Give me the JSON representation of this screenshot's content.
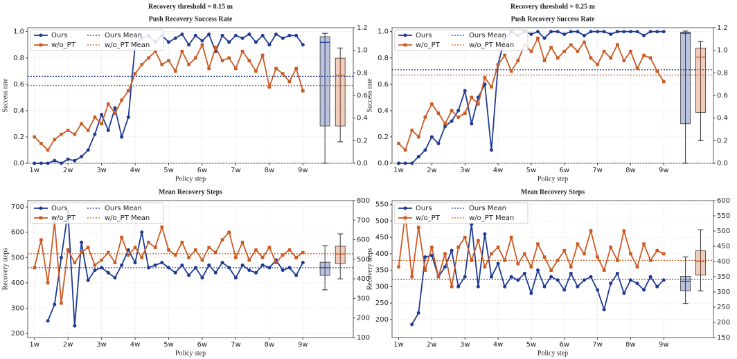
{
  "chart_data": [
    {
      "type": "line",
      "suptitle": "Recovery threshold = 0.15 m",
      "title": "Push Recovery Success Rate",
      "x_label": "Policy step",
      "y_label": "Success rate",
      "legend": "upper left",
      "grid": true,
      "x": [
        1,
        1.2,
        1.4,
        1.6,
        1.8,
        2,
        2.2,
        2.4,
        2.6,
        2.8,
        3,
        3.2,
        3.4,
        3.6,
        3.8,
        4,
        4.2,
        4.4,
        4.6,
        4.8,
        5,
        5.2,
        5.4,
        5.6,
        5.8,
        6,
        6.2,
        6.4,
        6.6,
        6.8,
        7,
        7.2,
        7.4,
        7.6,
        7.8,
        8,
        8.2,
        8.4,
        8.6,
        8.8,
        9
      ],
      "xlim": [
        0.8,
        10.5
      ],
      "xticks": [
        {
          "value": 1,
          "label": "1w"
        },
        {
          "value": 2,
          "label": "2w"
        },
        {
          "value": 3,
          "label": "3w"
        },
        {
          "value": 4,
          "label": "4w"
        },
        {
          "value": 5,
          "label": "5w"
        },
        {
          "value": 6,
          "label": "6w"
        },
        {
          "value": 7,
          "label": "7w"
        },
        {
          "value": 8,
          "label": "8w"
        },
        {
          "value": 9,
          "label": "9w"
        }
      ],
      "ylim": [
        0,
        1.03
      ],
      "yticks": [
        {
          "value": 0,
          "label": "0.0"
        },
        0.2,
        0.4,
        0.6,
        0.8,
        {
          "value": 1,
          "label": "1.0"
        }
      ],
      "y2lim": [
        0,
        1.2
      ],
      "y2ticks": [
        {
          "value": 0,
          "label": "0.0"
        },
        0.2,
        0.4,
        0.6,
        0.8,
        {
          "value": 1,
          "label": "1.0"
        },
        1.2
      ],
      "series": [
        {
          "name": "Ours",
          "color": "#1f3a93",
          "marker": "circle",
          "mean": 0.66,
          "mean_label": "Ours Mean",
          "values": [
            0,
            0,
            0,
            0.02,
            0,
            0.03,
            0.02,
            0.05,
            0.1,
            0.22,
            0.37,
            0.25,
            0.42,
            0.2,
            0.35,
            0.9,
            0.95,
            0.97,
            0.92,
            0.97,
            0.92,
            0.95,
            0.98,
            0.9,
            0.97,
            0.93,
            0.98,
            0.85,
            0.97,
            0.92,
            0.97,
            0.95,
            0.98,
            0.92,
            0.97,
            0.9,
            0.98,
            0.95,
            0.97,
            0.97,
            0.9
          ],
          "box": {
            "min": 0,
            "q1": 0.33,
            "median": 1.07,
            "q3": 1.12,
            "max": 1.15
          }
        },
        {
          "name": "w/o_PT",
          "color": "#cc5a22",
          "marker": "square",
          "mean": 0.59,
          "mean_label": "w/o_PT Mean",
          "values": [
            0.2,
            0.15,
            0.1,
            0.18,
            0.22,
            0.25,
            0.22,
            0.3,
            0.25,
            0.35,
            0.3,
            0.45,
            0.38,
            0.48,
            0.55,
            0.68,
            0.75,
            0.8,
            0.85,
            0.75,
            0.78,
            0.7,
            0.85,
            0.75,
            0.8,
            0.9,
            0.72,
            0.88,
            0.78,
            0.8,
            0.72,
            0.85,
            0.78,
            0.7,
            0.82,
            0.58,
            0.72,
            0.68,
            0.62,
            0.72,
            0.55
          ],
          "box": {
            "min": 0.19,
            "q1": 0.33,
            "median": 0.78,
            "q3": 0.93,
            "max": 1.02
          }
        }
      ]
    },
    {
      "type": "line",
      "suptitle": "Recovery threshold = 0.25 m",
      "title": "Push Recovery Success Rate",
      "x_label": "Policy step",
      "y_label": "Success rate",
      "legend": "upper left",
      "grid": true,
      "x": [
        1,
        1.2,
        1.4,
        1.6,
        1.8,
        2,
        2.2,
        2.4,
        2.6,
        2.8,
        3,
        3.2,
        3.4,
        3.6,
        3.8,
        4,
        4.2,
        4.4,
        4.6,
        4.8,
        5,
        5.2,
        5.4,
        5.6,
        5.8,
        6,
        6.2,
        6.4,
        6.6,
        6.8,
        7,
        7.2,
        7.4,
        7.6,
        7.8,
        8,
        8.2,
        8.4,
        8.6,
        8.8,
        9
      ],
      "xlim": [
        0.8,
        10.5
      ],
      "xticks": [
        {
          "value": 1,
          "label": "1w"
        },
        {
          "value": 2,
          "label": "2w"
        },
        {
          "value": 3,
          "label": "3w"
        },
        {
          "value": 4,
          "label": "4w"
        },
        {
          "value": 5,
          "label": "5w"
        },
        {
          "value": 6,
          "label": "6w"
        },
        {
          "value": 7,
          "label": "7w"
        },
        {
          "value": 8,
          "label": "8w"
        },
        {
          "value": 9,
          "label": "9w"
        }
      ],
      "ylim": [
        0,
        1.03
      ],
      "yticks": [
        {
          "value": 0,
          "label": "0.0"
        },
        0.2,
        0.4,
        0.6,
        0.8,
        {
          "value": 1,
          "label": "1.0"
        }
      ],
      "y2lim": [
        0,
        1.2
      ],
      "y2ticks": [
        {
          "value": 0,
          "label": "0.0"
        },
        0.2,
        0.4,
        0.6,
        0.8,
        {
          "value": 1,
          "label": "1.0"
        },
        1.2
      ],
      "series": [
        {
          "name": "Ours",
          "color": "#1f3a93",
          "marker": "circle",
          "mean": 0.71,
          "mean_label": "Ours Mean",
          "values": [
            0,
            0,
            0,
            0.05,
            0.1,
            0.2,
            0.15,
            0.28,
            0.32,
            0.4,
            0.55,
            0.3,
            0.5,
            0.6,
            0.1,
            0.75,
            0.95,
            1.0,
            0.97,
            1.0,
            0.98,
            1.0,
            0.95,
            1.0,
            1.0,
            0.98,
            1.0,
            1.0,
            0.97,
            1.0,
            1.0,
            1.0,
            0.98,
            1.0,
            1.0,
            1.0,
            1.0,
            0.97,
            1.0,
            1.0,
            1.0
          ],
          "box": {
            "min": 0,
            "q1": 0.35,
            "median": 1.15,
            "q3": 1.16,
            "max": 1.17
          }
        },
        {
          "name": "w/o_PT",
          "color": "#cc5a22",
          "marker": "square",
          "mean": 0.67,
          "mean_label": "w/o_PT Mean",
          "values": [
            0.15,
            0.1,
            0.25,
            0.2,
            0.35,
            0.45,
            0.38,
            0.3,
            0.4,
            0.35,
            0.38,
            0.5,
            0.45,
            0.65,
            0.58,
            0.75,
            0.82,
            0.7,
            0.78,
            0.9,
            0.85,
            0.95,
            0.78,
            0.88,
            0.8,
            0.85,
            0.9,
            0.85,
            0.92,
            0.8,
            0.75,
            0.85,
            0.8,
            0.9,
            0.78,
            0.85,
            0.72,
            0.82,
            0.8,
            0.7,
            0.62
          ],
          "box": {
            "min": 0.2,
            "q1": 0.45,
            "median": 0.94,
            "q3": 1.02,
            "max": 1.08
          }
        }
      ]
    },
    {
      "type": "line",
      "title": "Mean Recovery Steps",
      "x_label": "Policy step",
      "y_label": "Recovery steps",
      "legend": "upper left",
      "grid": true,
      "x": [
        1,
        1.2,
        1.4,
        1.6,
        1.8,
        2,
        2.2,
        2.4,
        2.6,
        2.8,
        3,
        3.2,
        3.4,
        3.6,
        3.8,
        4,
        4.2,
        4.4,
        4.6,
        4.8,
        5,
        5.2,
        5.4,
        5.6,
        5.8,
        6,
        6.2,
        6.4,
        6.6,
        6.8,
        7,
        7.2,
        7.4,
        7.6,
        7.8,
        8,
        8.2,
        8.4,
        8.6,
        8.8,
        9
      ],
      "xlim": [
        0.8,
        10.5
      ],
      "xticks": [
        {
          "value": 1,
          "label": "1w"
        },
        {
          "value": 2,
          "label": "2w"
        },
        {
          "value": 3,
          "label": "3w"
        },
        {
          "value": 4,
          "label": "4w"
        },
        {
          "value": 5,
          "label": "5w"
        },
        {
          "value": 6,
          "label": "6w"
        },
        {
          "value": 7,
          "label": "7w"
        },
        {
          "value": 8,
          "label": "8w"
        },
        {
          "value": 9,
          "label": "9w"
        }
      ],
      "ylim": [
        184,
        725
      ],
      "yticks": [
        200,
        300,
        400,
        500,
        600,
        700
      ],
      "y2lim": [
        100,
        800
      ],
      "y2ticks": [
        100,
        200,
        300,
        400,
        500,
        600,
        700,
        800
      ],
      "series": [
        {
          "name": "Ours",
          "color": "#1f3a93",
          "marker": "circle",
          "mean": 460,
          "mean_label": "Ours Mean",
          "values": [
            null,
            null,
            250,
            315,
            500,
            680,
            230,
            560,
            410,
            450,
            460,
            440,
            420,
            470,
            530,
            480,
            600,
            460,
            470,
            480,
            460,
            440,
            470,
            430,
            460,
            420,
            470,
            440,
            480,
            460,
            420,
            470,
            450,
            440,
            470,
            460,
            490,
            450,
            460,
            430,
            480
          ],
          "box": {
            "min": 344,
            "q1": 418,
            "median": 457,
            "q3": 485,
            "max": 570
          }
        },
        {
          "name": "w/o_PT",
          "color": "#cc5a22",
          "marker": "square",
          "mean": 515,
          "mean_label": "w/o_PT Mean",
          "values": [
            460,
            570,
            400,
            640,
            320,
            530,
            480,
            520,
            540,
            470,
            490,
            520,
            480,
            580,
            510,
            540,
            500,
            560,
            540,
            620,
            530,
            510,
            560,
            500,
            530,
            490,
            540,
            520,
            570,
            600,
            500,
            560,
            490,
            530,
            500,
            540,
            480,
            510,
            530,
            500,
            520
          ],
          "box": {
            "min": 400,
            "q1": 478,
            "median": 527,
            "q3": 567,
            "max": 630
          }
        }
      ]
    },
    {
      "type": "line",
      "title": "Mean Recovery Steps",
      "x_label": "Policy step",
      "y_label": "Recovery steps",
      "legend": "upper left",
      "grid": true,
      "x": [
        1,
        1.2,
        1.4,
        1.6,
        1.8,
        2,
        2.2,
        2.4,
        2.6,
        2.8,
        3,
        3.2,
        3.4,
        3.6,
        3.8,
        4,
        4.2,
        4.4,
        4.6,
        4.8,
        5,
        5.2,
        5.4,
        5.6,
        5.8,
        6,
        6.2,
        6.4,
        6.6,
        6.8,
        7,
        7.2,
        7.4,
        7.6,
        7.8,
        8,
        8.2,
        8.4,
        8.6,
        8.8,
        9
      ],
      "xlim": [
        0.8,
        10.5
      ],
      "xticks": [
        {
          "value": 1,
          "label": "1w"
        },
        {
          "value": 2,
          "label": "2w"
        },
        {
          "value": 3,
          "label": "3w"
        },
        {
          "value": 4,
          "label": "4w"
        },
        {
          "value": 5,
          "label": "5w"
        },
        {
          "value": 6,
          "label": "6w"
        },
        {
          "value": 7,
          "label": "7w"
        },
        {
          "value": 8,
          "label": "8w"
        },
        {
          "value": 9,
          "label": "9w"
        }
      ],
      "ylim": [
        145,
        562
      ],
      "yticks": [
        200,
        250,
        300,
        350,
        400,
        450,
        500,
        550
      ],
      "y2lim": [
        150,
        600
      ],
      "y2ticks": [
        150,
        200,
        250,
        300,
        350,
        400,
        450,
        500,
        550,
        600
      ],
      "series": [
        {
          "name": "Ours",
          "color": "#1f3a93",
          "marker": "circle",
          "mean": 322,
          "mean_label": "Ours Mean",
          "values": [
            null,
            null,
            185,
            220,
            390,
            395,
            330,
            360,
            410,
            300,
            330,
            490,
            300,
            460,
            330,
            370,
            300,
            330,
            320,
            340,
            280,
            350,
            300,
            330,
            320,
            290,
            340,
            300,
            320,
            330,
            290,
            230,
            310,
            340,
            280,
            320,
            310,
            290,
            330,
            300,
            320
          ],
          "box": {
            "min": 262,
            "q1": 303,
            "median": 335,
            "q3": 351,
            "max": 415
          }
        },
        {
          "name": "w/o_PT",
          "color": "#cc5a22",
          "marker": "square",
          "mean": 380,
          "mean_label": "w/o_PT Mean",
          "values": [
            360,
            520,
            330,
            480,
            350,
            420,
            330,
            400,
            300,
            420,
            450,
            380,
            440,
            360,
            400,
            420,
            380,
            450,
            370,
            400,
            360,
            430,
            390,
            350,
            380,
            410,
            360,
            430,
            400,
            470,
            390,
            350,
            420,
            380,
            470,
            400,
            360,
            430,
            380,
            410,
            400
          ],
          "box": {
            "min": 303,
            "q1": 355,
            "median": 399,
            "q3": 435,
            "max": 504
          }
        }
      ]
    }
  ]
}
